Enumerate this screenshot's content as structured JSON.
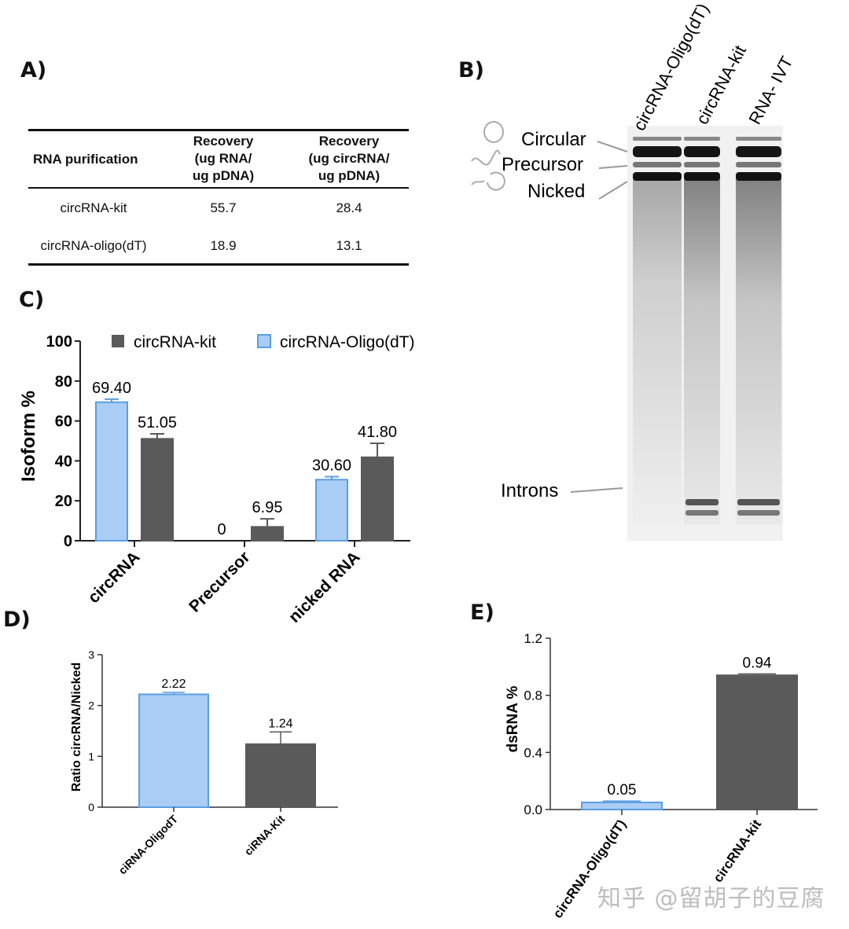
{
  "panel_labels": {
    "a": "A)",
    "b": "B)",
    "c": "C)",
    "d": "D)",
    "e": "E)"
  },
  "table": {
    "headers": [
      "RNA purification",
      "Recovery\n(ug RNA/\nug pDNA)",
      "Recovery\n(ug circRNA/\nug pDNA)"
    ],
    "rows": [
      [
        "circRNA-kit",
        "55.7",
        "28.4"
      ],
      [
        "circRNA-oligo(dT)",
        "18.9",
        "13.1"
      ]
    ]
  },
  "gel": {
    "lanes": [
      "circRNA-Oligo(dT)",
      "circRNA-kit",
      "RNA- IVT"
    ],
    "band_labels": {
      "circular": "Circular",
      "precursor": "Precursor",
      "nicked": "Nicked",
      "introns": "Introns"
    }
  },
  "colors": {
    "light_blue": "#a9cdf5",
    "blue_edge": "#5b9ee0",
    "dark_gray": "#5a5a5a"
  },
  "chart_data": [
    {
      "id": "C",
      "type": "bar",
      "categories": [
        "circRNA",
        "Precursor",
        "nicked RNA"
      ],
      "series": [
        {
          "name": "circRNA-Oligo(dT)",
          "values": [
            69.4,
            0,
            30.6
          ],
          "errors": [
            1.5,
            0,
            1.5
          ],
          "labels": [
            "69.40",
            "0",
            "30.60"
          ]
        },
        {
          "name": "circRNA-kit",
          "values": [
            51.05,
            6.95,
            41.8
          ],
          "errors": [
            2.5,
            4,
            7
          ],
          "labels": [
            "51.05",
            "6.95",
            "41.80"
          ]
        }
      ],
      "ylabel": "Isoform %",
      "ylim": [
        0,
        100
      ],
      "yticks": [
        "0",
        "20",
        "40",
        "60",
        "80",
        "100"
      ],
      "legend": "top"
    },
    {
      "id": "D",
      "type": "bar",
      "categories": [
        "ciRNA-OligodT",
        "ciRNA-Kit"
      ],
      "values": [
        2.22,
        1.24
      ],
      "errors": [
        0.04,
        0.24
      ],
      "labels": [
        "2.22",
        "1.24"
      ],
      "ylabel": "Ratio circRNA/Nicked",
      "ylim": [
        0,
        3
      ],
      "yticks": [
        "0",
        "1",
        "2",
        "3"
      ]
    },
    {
      "id": "E",
      "type": "bar",
      "categories": [
        "circRNA-Oligo(dT)",
        "circRNA-kit"
      ],
      "values": [
        0.05,
        0.94
      ],
      "errors": [
        0.01,
        0.01
      ],
      "labels": [
        "0.05",
        "0.94"
      ],
      "ylabel": "dsRNA %",
      "ylim": [
        0,
        1.2
      ],
      "yticks": [
        "0.0",
        "0.4",
        "0.8",
        "1.2"
      ]
    }
  ],
  "watermark": "知乎 @留胡子的豆腐"
}
